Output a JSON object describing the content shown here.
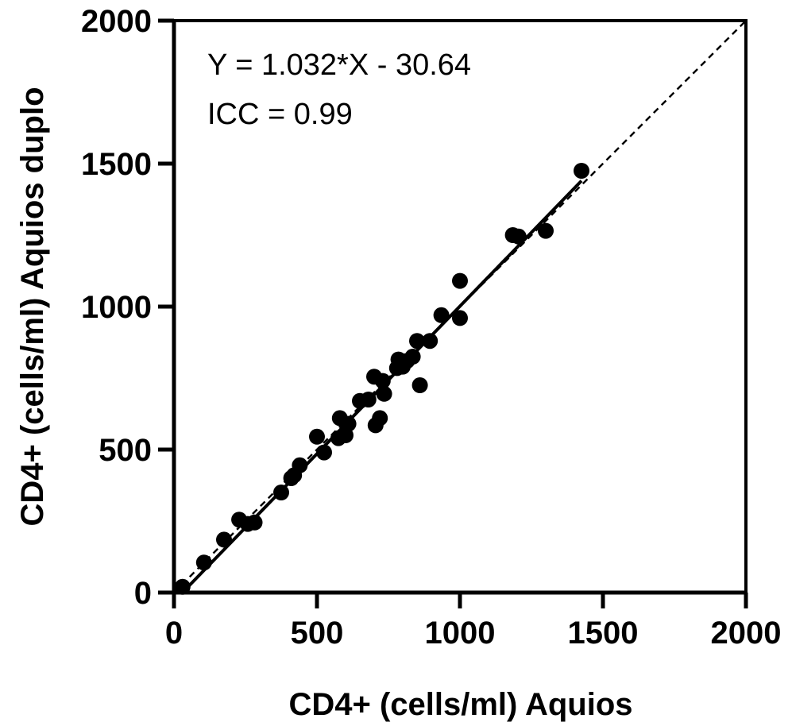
{
  "chart_data": {
    "type": "scatter",
    "title": "",
    "xlabel": "CD4+ (cells/ml) Aquios",
    "ylabel": "CD4+ (cells/ml) Aquios duplo",
    "xlim": [
      0,
      2000
    ],
    "ylim": [
      0,
      2000
    ],
    "xticks": [
      "0",
      "500",
      "1000",
      "1500",
      "2000"
    ],
    "yticks": [
      "0",
      "500",
      "1000",
      "1500",
      "2000"
    ],
    "annotations": [
      "Y = 1.032*X - 30.64",
      "ICC = 0.99"
    ],
    "grid": false,
    "points": [
      {
        "x": 30,
        "y": 20
      },
      {
        "x": 105,
        "y": 105
      },
      {
        "x": 175,
        "y": 185
      },
      {
        "x": 228,
        "y": 255
      },
      {
        "x": 258,
        "y": 240
      },
      {
        "x": 282,
        "y": 245
      },
      {
        "x": 375,
        "y": 350
      },
      {
        "x": 410,
        "y": 400
      },
      {
        "x": 420,
        "y": 410
      },
      {
        "x": 440,
        "y": 445
      },
      {
        "x": 500,
        "y": 545
      },
      {
        "x": 525,
        "y": 490
      },
      {
        "x": 575,
        "y": 540
      },
      {
        "x": 580,
        "y": 610
      },
      {
        "x": 600,
        "y": 550
      },
      {
        "x": 610,
        "y": 590
      },
      {
        "x": 650,
        "y": 670
      },
      {
        "x": 680,
        "y": 675
      },
      {
        "x": 700,
        "y": 755
      },
      {
        "x": 705,
        "y": 585
      },
      {
        "x": 720,
        "y": 610
      },
      {
        "x": 730,
        "y": 740
      },
      {
        "x": 735,
        "y": 695
      },
      {
        "x": 780,
        "y": 785
      },
      {
        "x": 785,
        "y": 815
      },
      {
        "x": 800,
        "y": 790
      },
      {
        "x": 815,
        "y": 810
      },
      {
        "x": 835,
        "y": 825
      },
      {
        "x": 850,
        "y": 880
      },
      {
        "x": 860,
        "y": 725
      },
      {
        "x": 895,
        "y": 880
      },
      {
        "x": 935,
        "y": 970
      },
      {
        "x": 1000,
        "y": 960
      },
      {
        "x": 1000,
        "y": 1090
      },
      {
        "x": 1185,
        "y": 1250
      },
      {
        "x": 1205,
        "y": 1245
      },
      {
        "x": 1300,
        "y": 1265
      },
      {
        "x": 1425,
        "y": 1475
      }
    ],
    "regression": {
      "slope": 1.032,
      "intercept": -30.64,
      "x_range": [
        30,
        1425
      ]
    },
    "identity_line": {
      "x_range": [
        0,
        2000
      ]
    }
  }
}
